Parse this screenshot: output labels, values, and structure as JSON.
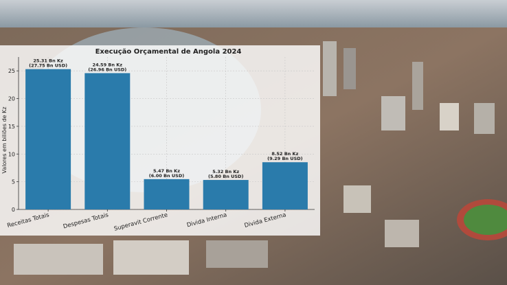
{
  "colors": {
    "bar": "#2a7bab",
    "grid": "#c7c7c7",
    "text": "#222222"
  },
  "chart_data": {
    "type": "bar",
    "title": "Execução Orçamental de Angola 2024",
    "xlabel": "",
    "ylabel": "Valores em biliões de Kz",
    "ylim": [
      0,
      27.5
    ],
    "yticks": [
      0,
      5,
      10,
      15,
      20,
      25
    ],
    "grid": true,
    "categories": [
      "Receitas Totais",
      "Despesas Totais",
      "Superavit Corrente",
      "Divida Interna",
      "Divida Externa"
    ],
    "values": [
      25.31,
      24.59,
      5.47,
      5.32,
      8.52
    ],
    "labels_kz": [
      "25.31 Bn Kz",
      "24.59 Bn Kz",
      "5.47 Bn Kz",
      "5.32 Bn Kz",
      "8.52 Bn Kz"
    ],
    "labels_usd": [
      "(27.75 Bn USD)",
      "(26.96 Bn USD)",
      "(6.00 Bn USD)",
      "(5.80 Bn USD)",
      "(9.29 Bn USD)"
    ]
  }
}
